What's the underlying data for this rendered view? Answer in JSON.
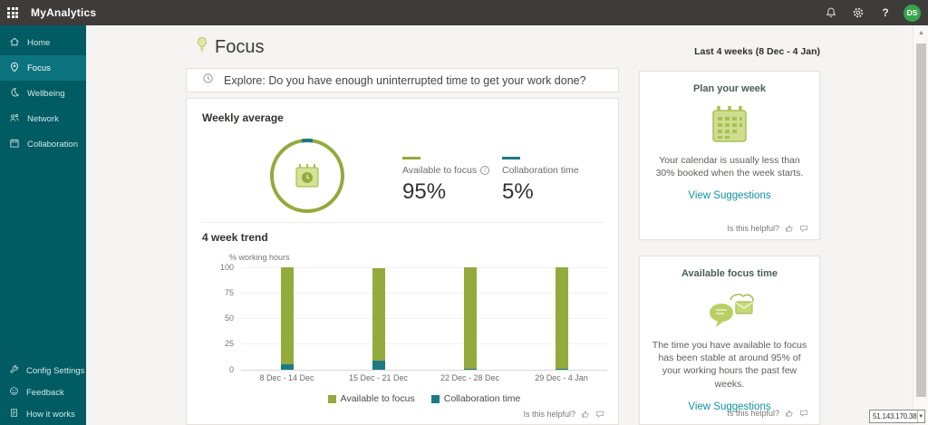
{
  "topbar": {
    "app_title": "MyAnalytics",
    "avatar_initials": "DS"
  },
  "sidebar": {
    "items": [
      {
        "label": "Home",
        "icon": "home-icon",
        "active": false
      },
      {
        "label": "Focus",
        "icon": "focus-icon",
        "active": true
      },
      {
        "label": "Wellbeing",
        "icon": "wellbeing-icon",
        "active": false
      },
      {
        "label": "Network",
        "icon": "network-icon",
        "active": false
      },
      {
        "label": "Collaboration",
        "icon": "collaboration-icon",
        "active": false
      }
    ],
    "footer_items": [
      {
        "label": "Config Settings",
        "icon": "wrench-icon"
      },
      {
        "label": "Feedback",
        "icon": "smiley-icon"
      },
      {
        "label": "How it works",
        "icon": "document-icon"
      }
    ]
  },
  "header": {
    "title": "Focus",
    "date_range": "Last 4 weeks (8 Dec - 4 Jan)"
  },
  "explore_banner": {
    "text": "Explore: Do you have enough uninterrupted time to get your work done?"
  },
  "weekly_average": {
    "title": "Weekly average",
    "metrics": [
      {
        "label": "Available to focus",
        "value": "95%",
        "pct": 95,
        "color": "#93aa3c",
        "has_info_icon": true
      },
      {
        "label": "Collaboration time",
        "value": "5%",
        "pct": 5,
        "color": "#1b7a84",
        "has_info_icon": false
      }
    ]
  },
  "chart_data": {
    "type": "bar",
    "stacked": true,
    "title": "4 week trend",
    "ylabel": "% working hours",
    "ylim": [
      0,
      100
    ],
    "yticks": [
      0,
      25,
      50,
      75,
      100
    ],
    "grid": true,
    "legend_position": "bottom",
    "categories": [
      "8 Dec - 14 Dec",
      "15 Dec - 21 Dec",
      "22 Dec - 28 Dec",
      "29 Dec - 4 Jan"
    ],
    "series": [
      {
        "name": "Available to focus",
        "color": "#93aa3c",
        "values": [
          95,
          90,
          99,
          99
        ]
      },
      {
        "name": "Collaboration time",
        "color": "#1b7a84",
        "values": [
          5,
          9,
          1,
          1
        ]
      }
    ]
  },
  "feedback_prompt": {
    "text": "Is this helpful?"
  },
  "cards": [
    {
      "title": "Plan your week",
      "icon": "calendar-icon",
      "body": "Your calendar is usually less than 30% booked when the week starts.",
      "link": "View Suggestions",
      "helpful": "Is this helpful?"
    },
    {
      "title": "Available focus time",
      "icon": "chat-mail-icon",
      "body": "The time you have available to focus has been stable at around 95% of your working hours the past few weeks.",
      "link": "View Suggestions",
      "helpful": "Is this helpful?"
    }
  ],
  "ip_selector": {
    "value": "51.143.170.38"
  },
  "colors": {
    "topbar_bg": "#3d3c3b",
    "sidebar_bg": "#015b63",
    "sidebar_active": "#0c747e",
    "accent_green": "#93aa3c",
    "accent_teal": "#1b7a84",
    "link_teal": "#1192a1",
    "avatar_green": "#37a34c"
  }
}
